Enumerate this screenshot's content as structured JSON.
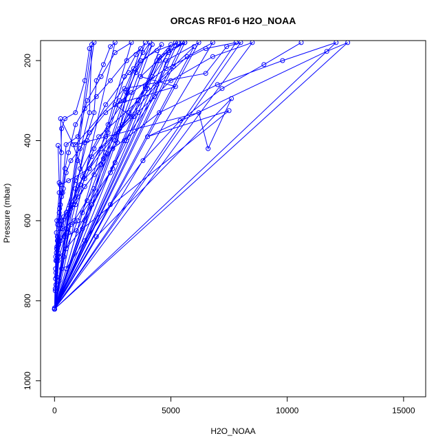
{
  "chart_data": {
    "type": "scatter",
    "title": "ORCAS RF01-6 H2O_NOAA",
    "xlabel": "H2O_NOAA",
    "ylabel": "Pressure (mbar)",
    "xlim": [
      -600,
      15950
    ],
    "ylim": [
      1040,
      150
    ],
    "y_reversed": true,
    "xticks": [
      0,
      5000,
      10000,
      15000
    ],
    "yticks": [
      200,
      400,
      600,
      800,
      1000
    ],
    "grid": false,
    "legend": "none",
    "series_color": "#0000ff",
    "series": [
      {
        "style": "line+points",
        "points": [
          [
            0,
            821
          ],
          [
            0,
            818
          ],
          [
            30,
            770
          ],
          [
            40,
            745
          ],
          [
            60,
            700
          ],
          [
            90,
            670
          ],
          [
            120,
            640
          ],
          [
            200,
            600
          ],
          [
            250,
            560
          ],
          [
            300,
            530
          ],
          [
            380,
            520
          ],
          [
            450,
            470
          ],
          [
            600,
            430
          ],
          [
            900,
            360
          ],
          [
            1300,
            320
          ],
          [
            1800,
            290
          ],
          [
            2400,
            250
          ],
          [
            3100,
            200
          ],
          [
            3700,
            170
          ],
          [
            0,
            821
          ],
          [
            200,
            750
          ],
          [
            700,
            560
          ],
          [
            1000,
            450
          ],
          [
            1500,
            330
          ],
          [
            1600,
            160
          ],
          [
            0,
            821
          ],
          [
            400,
            690
          ],
          [
            900,
            520
          ],
          [
            1400,
            400
          ],
          [
            2200,
            310
          ],
          [
            3200,
            230
          ],
          [
            4600,
            160
          ],
          [
            0,
            821
          ],
          [
            150,
            660
          ],
          [
            300,
            610
          ],
          [
            200,
            505
          ],
          [
            150,
            412
          ],
          [
            300,
            430
          ],
          [
            260,
            345
          ],
          [
            800,
            410
          ],
          [
            1300,
            495
          ],
          [
            2100,
            445
          ],
          [
            2700,
            405
          ],
          [
            3100,
            280
          ],
          [
            3500,
            230
          ],
          [
            4200,
            160
          ],
          [
            0,
            821
          ],
          [
            600,
            630
          ],
          [
            1100,
            510
          ],
          [
            1700,
            420
          ],
          [
            2300,
            360
          ],
          [
            3000,
            300
          ],
          [
            3700,
            200
          ],
          [
            4400,
            175
          ],
          [
            5300,
            155
          ],
          [
            0,
            821
          ],
          [
            1200,
            580
          ],
          [
            2500,
            470
          ],
          [
            3900,
            270
          ],
          [
            4500,
            190
          ],
          [
            5500,
            155
          ],
          [
            0,
            821
          ],
          [
            1800,
            640
          ],
          [
            7600,
            295
          ],
          [
            6600,
            420
          ],
          [
            6200,
            330
          ],
          [
            900,
            410
          ],
          [
            3000,
            270
          ],
          [
            6500,
            232
          ],
          [
            7400,
            165
          ],
          [
            8000,
            155
          ],
          [
            0,
            821
          ],
          [
            200,
            690
          ],
          [
            1200,
            620
          ],
          [
            7500,
            325
          ],
          [
            4000,
            390
          ],
          [
            11700,
            177
          ],
          [
            12600,
            155
          ],
          [
            0,
            821
          ],
          [
            100,
            700
          ],
          [
            600,
            570
          ],
          [
            1600,
            440
          ],
          [
            3300,
            340
          ],
          [
            2600,
            310
          ],
          [
            5200,
            265
          ],
          [
            3700,
            240
          ],
          [
            4900,
            175
          ],
          [
            5600,
            155
          ],
          [
            0,
            821
          ],
          [
            300,
            720
          ],
          [
            700,
            610
          ],
          [
            1300,
            600
          ],
          [
            2600,
            455
          ],
          [
            3000,
            400
          ],
          [
            4300,
            290
          ],
          [
            4800,
            200
          ],
          [
            6200,
            155
          ],
          [
            0,
            821
          ],
          [
            50,
            690
          ],
          [
            80,
            630
          ],
          [
            130,
            610
          ],
          [
            220,
            570
          ],
          [
            350,
            530
          ],
          [
            500,
            480
          ],
          [
            700,
            450
          ],
          [
            1100,
            420
          ],
          [
            1500,
            380
          ],
          [
            2200,
            330
          ],
          [
            3300,
            280
          ],
          [
            4800,
            220
          ],
          [
            6500,
            170
          ],
          [
            7800,
            155
          ],
          [
            0,
            821
          ],
          [
            250,
            620
          ],
          [
            800,
            560
          ],
          [
            1500,
            470
          ],
          [
            2800,
            370
          ],
          [
            4400,
            260
          ],
          [
            5700,
            190
          ],
          [
            6800,
            155
          ],
          [
            0,
            821
          ],
          [
            120,
            650
          ],
          [
            400,
            590
          ],
          [
            900,
            500
          ],
          [
            1900,
            390
          ],
          [
            3600,
            300
          ],
          [
            5100,
            215
          ],
          [
            6000,
            165
          ],
          [
            0,
            821
          ],
          [
            60,
            730
          ],
          [
            180,
            660
          ],
          [
            350,
            620
          ],
          [
            850,
            600
          ],
          [
            1700,
            520
          ],
          [
            2600,
            400
          ],
          [
            3200,
            330
          ],
          [
            3900,
            265
          ],
          [
            4400,
            200
          ],
          [
            5000,
            160
          ],
          [
            0,
            821
          ],
          [
            300,
            540
          ],
          [
            500,
            410
          ],
          [
            1000,
            390
          ],
          [
            1400,
            300
          ],
          [
            2000,
            240
          ],
          [
            2600,
            180
          ],
          [
            3300,
            155
          ],
          [
            0,
            821
          ],
          [
            200,
            580
          ],
          [
            250,
            510
          ],
          [
            300,
            370
          ],
          [
            450,
            345
          ],
          [
            900,
            330
          ],
          [
            1300,
            250
          ],
          [
            1500,
            170
          ],
          [
            1700,
            155
          ],
          [
            0,
            821
          ],
          [
            500,
            670
          ],
          [
            1000,
            600
          ],
          [
            1400,
            550
          ],
          [
            2000,
            460
          ],
          [
            2300,
            380
          ],
          [
            2800,
            300
          ],
          [
            3400,
            220
          ],
          [
            3800,
            180
          ],
          [
            4100,
            155
          ],
          [
            0,
            821
          ],
          [
            100,
            600
          ],
          [
            200,
            530
          ],
          [
            250,
            510
          ],
          [
            600,
            500
          ],
          [
            1500,
            470
          ],
          [
            2200,
            390
          ],
          [
            3000,
            240
          ],
          [
            3500,
            185
          ],
          [
            3900,
            155
          ],
          [
            0,
            821
          ],
          [
            60,
            760
          ],
          [
            120,
            690
          ],
          [
            200,
            650
          ],
          [
            400,
            640
          ],
          [
            700,
            570
          ],
          [
            1200,
            490
          ],
          [
            2000,
            420
          ],
          [
            3400,
            340
          ],
          [
            5000,
            250
          ],
          [
            6800,
            190
          ],
          [
            8500,
            155
          ],
          [
            0,
            821
          ],
          [
            80,
            680
          ],
          [
            300,
            600
          ],
          [
            1000,
            540
          ],
          [
            2500,
            420
          ],
          [
            4500,
            330
          ],
          [
            7000,
            260
          ],
          [
            9800,
            200
          ],
          [
            12100,
            155
          ],
          [
            0,
            821
          ],
          [
            40,
            720
          ],
          [
            100,
            665
          ],
          [
            260,
            650
          ],
          [
            500,
            620
          ],
          [
            800,
            560
          ],
          [
            1100,
            470
          ],
          [
            1300,
            405
          ],
          [
            1700,
            330
          ],
          [
            1800,
            250
          ],
          [
            2100,
            210
          ],
          [
            2400,
            165
          ],
          [
            2600,
            155
          ],
          [
            0,
            821
          ],
          [
            150,
            700
          ],
          [
            450,
            640
          ],
          [
            950,
            625
          ],
          [
            1600,
            560
          ],
          [
            2400,
            480
          ],
          [
            3100,
            400
          ],
          [
            3600,
            330
          ],
          [
            4000,
            270
          ],
          [
            4500,
            200
          ],
          [
            5200,
            155
          ],
          [
            0,
            821
          ],
          [
            30,
            775
          ],
          [
            90,
            740
          ],
          [
            150,
            680
          ],
          [
            240,
            620
          ],
          [
            500,
            580
          ],
          [
            900,
            560
          ],
          [
            1300,
            515
          ],
          [
            1700,
            485
          ],
          [
            2200,
            430
          ],
          [
            2900,
            360
          ],
          [
            3600,
            300
          ],
          [
            4200,
            240
          ],
          [
            4900,
            180
          ],
          [
            5600,
            155
          ],
          [
            0,
            821
          ],
          [
            500,
            720
          ],
          [
            1300,
            650
          ],
          [
            2400,
            560
          ],
          [
            3800,
            450
          ],
          [
            5400,
            350
          ],
          [
            7200,
            270
          ],
          [
            9000,
            210
          ],
          [
            10600,
            155
          ]
        ]
      }
    ]
  }
}
